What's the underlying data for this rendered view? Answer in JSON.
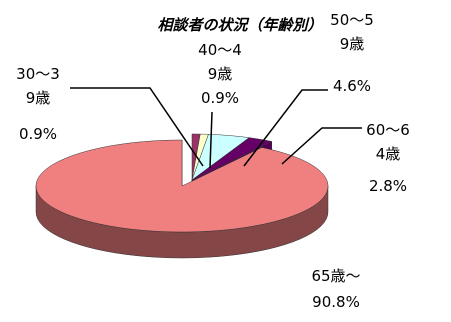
{
  "chart_data": {
    "type": "pie3d",
    "title": "相談者の状況（年齢別）",
    "categories": [
      "30～39歳",
      "40～49歳",
      "50～59歳",
      "60～64歳",
      "65歳～"
    ],
    "values": [
      0.9,
      0.9,
      4.6,
      2.8,
      90.8
    ],
    "value_labels": [
      "0.9%",
      "0.9%",
      "4.6%",
      "2.8%",
      "90.8%"
    ],
    "colors": [
      "#993366",
      "#ffffcc",
      "#ccffff",
      "#660066",
      "#f07f7f"
    ]
  }
}
